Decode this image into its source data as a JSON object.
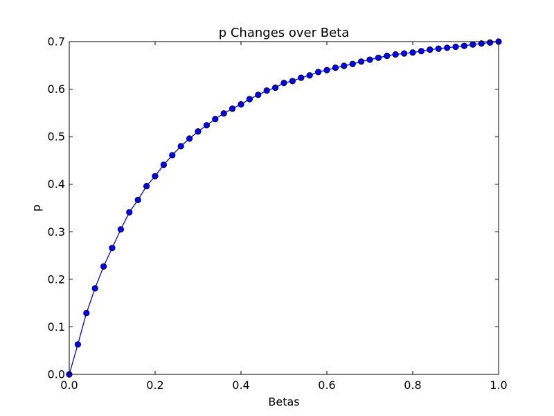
{
  "chart_data": {
    "type": "line",
    "title": "p Changes over Beta",
    "xlabel": "Betas",
    "ylabel": "p",
    "xlim": [
      0.0,
      1.0
    ],
    "ylim": [
      0.0,
      0.7
    ],
    "xticks": [
      0.0,
      0.2,
      0.4,
      0.6,
      0.8,
      1.0
    ],
    "xtick_labels": [
      "0.0",
      "0.2",
      "0.4",
      "0.6",
      "0.8",
      "1.0"
    ],
    "yticks": [
      0.0,
      0.1,
      0.2,
      0.3,
      0.4,
      0.5,
      0.6,
      0.7
    ],
    "ytick_labels": [
      "0.0",
      "0.1",
      "0.2",
      "0.3",
      "0.4",
      "0.5",
      "0.6",
      "0.7"
    ],
    "grid": false,
    "legend": "none",
    "series": [
      {
        "color": "#0000ff",
        "marker": "circle",
        "x": [
          0.0,
          0.02,
          0.04,
          0.06,
          0.08,
          0.1,
          0.12,
          0.14,
          0.16,
          0.18,
          0.2,
          0.22,
          0.24,
          0.26,
          0.28,
          0.3,
          0.32,
          0.34,
          0.36,
          0.38,
          0.4,
          0.42,
          0.44,
          0.46,
          0.48,
          0.5,
          0.52,
          0.54,
          0.56,
          0.58,
          0.6,
          0.62,
          0.64,
          0.66,
          0.68,
          0.7,
          0.72,
          0.74,
          0.76,
          0.78,
          0.8,
          0.82,
          0.84,
          0.86,
          0.88,
          0.9,
          0.92,
          0.94,
          0.96,
          0.98,
          1.0
        ],
        "y": [
          0.0,
          0.063,
          0.129,
          0.181,
          0.227,
          0.266,
          0.305,
          0.341,
          0.367,
          0.396,
          0.417,
          0.441,
          0.461,
          0.48,
          0.496,
          0.511,
          0.524,
          0.537,
          0.549,
          0.559,
          0.568,
          0.579,
          0.588,
          0.597,
          0.603,
          0.613,
          0.617,
          0.624,
          0.629,
          0.636,
          0.64,
          0.645,
          0.649,
          0.653,
          0.658,
          0.662,
          0.666,
          0.67,
          0.673,
          0.675,
          0.677,
          0.68,
          0.683,
          0.685,
          0.687,
          0.689,
          0.691,
          0.694,
          0.696,
          0.698,
          0.7
        ]
      }
    ]
  }
}
